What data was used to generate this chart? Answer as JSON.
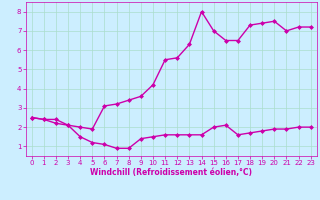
{
  "background_color": "#cceeff",
  "grid_color": "#aaddcc",
  "line_color": "#cc00aa",
  "marker": "D",
  "markersize": 2,
  "linewidth": 1.0,
  "xlim": [
    -0.5,
    23.5
  ],
  "ylim": [
    0.5,
    8.5
  ],
  "xlabel": "Windchill (Refroidissement éolien,°C)",
  "xlabel_fontsize": 5.5,
  "tick_fontsize": 5,
  "xticks": [
    0,
    1,
    2,
    3,
    4,
    5,
    6,
    7,
    8,
    9,
    10,
    11,
    12,
    13,
    14,
    15,
    16,
    17,
    18,
    19,
    20,
    21,
    22,
    23
  ],
  "yticks": [
    1,
    2,
    3,
    4,
    5,
    6,
    7,
    8
  ],
  "curve1_x": [
    0,
    1,
    2,
    3,
    4,
    5,
    6,
    7,
    8,
    9,
    10,
    11,
    12,
    13,
    14,
    15,
    16,
    17,
    18,
    19,
    20,
    21,
    22,
    23
  ],
  "curve1_y": [
    2.5,
    2.4,
    2.4,
    2.1,
    1.5,
    1.2,
    1.1,
    0.9,
    0.9,
    1.4,
    1.5,
    1.6,
    1.6,
    1.6,
    1.6,
    2.0,
    2.1,
    1.6,
    1.7,
    1.8,
    1.9,
    1.9,
    2.0,
    2.0
  ],
  "curve2_x": [
    0,
    1,
    2,
    3,
    4,
    5,
    6,
    7,
    8,
    9,
    10,
    11,
    12,
    13,
    14,
    15,
    16,
    17,
    18,
    19,
    20,
    21,
    22,
    23
  ],
  "curve2_y": [
    2.5,
    2.4,
    2.2,
    2.1,
    2.0,
    1.9,
    3.1,
    3.2,
    3.4,
    3.6,
    4.2,
    5.5,
    5.6,
    6.3,
    8.0,
    7.0,
    6.5,
    6.5,
    7.3,
    7.4,
    7.5,
    7.0,
    7.2,
    7.2
  ]
}
